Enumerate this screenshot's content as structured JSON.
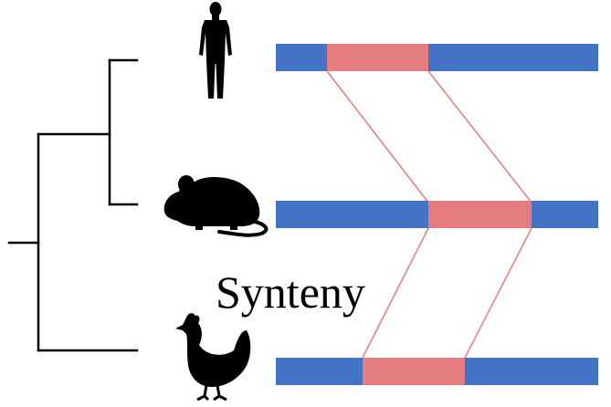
{
  "title": "",
  "label": "Synteny",
  "colors": {
    "chromosome": "#4472C4",
    "syntenic_block": "#E57C80",
    "link": "#E57C80",
    "tree": "#000000",
    "silhouette": "#000000"
  },
  "species": [
    {
      "icon": "human-silhouette-icon"
    },
    {
      "icon": "mouse-silhouette-icon"
    },
    {
      "icon": "chicken-silhouette-icon"
    }
  ]
}
